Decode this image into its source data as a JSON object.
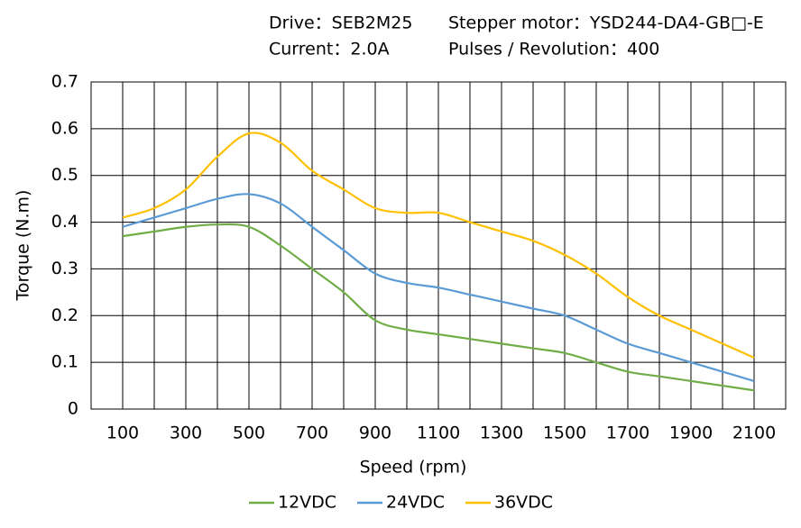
{
  "chart_data": {
    "type": "line",
    "annotations": [
      "Drive：SEB2M25",
      "Stepper motor：YSD244-DA4-GB□-E",
      "Current：2.0A",
      "Pulses / Revolution：400"
    ],
    "x_label": "Speed (rpm)",
    "y_label": "Torque (N.m)",
    "x": [
      100,
      200,
      300,
      400,
      500,
      600,
      700,
      800,
      900,
      1000,
      1100,
      1200,
      1300,
      1400,
      1500,
      1600,
      1700,
      1800,
      1900,
      2000,
      2100
    ],
    "series": [
      {
        "name": "12VDC",
        "color": "#70ad47",
        "values": [
          0.37,
          0.38,
          0.39,
          0.395,
          0.39,
          0.35,
          0.3,
          0.25,
          0.19,
          0.17,
          0.16,
          0.15,
          0.14,
          0.13,
          0.12,
          0.1,
          0.08,
          0.07,
          0.06,
          0.05,
          0.04
        ]
      },
      {
        "name": "24VDC",
        "color": "#5b9bd5",
        "values": [
          0.39,
          0.41,
          0.43,
          0.45,
          0.46,
          0.44,
          0.39,
          0.34,
          0.29,
          0.27,
          0.26,
          0.245,
          0.23,
          0.215,
          0.2,
          0.17,
          0.14,
          0.12,
          0.1,
          0.08,
          0.06
        ]
      },
      {
        "name": "36VDC",
        "color": "#ffc000",
        "values": [
          0.41,
          0.43,
          0.47,
          0.54,
          0.59,
          0.57,
          0.51,
          0.47,
          0.43,
          0.42,
          0.42,
          0.4,
          0.38,
          0.36,
          0.33,
          0.29,
          0.24,
          0.2,
          0.17,
          0.14,
          0.11
        ]
      }
    ],
    "xlim": [
      0,
      2200
    ],
    "xticks": [
      100,
      300,
      500,
      700,
      900,
      1100,
      1300,
      1500,
      1700,
      1900,
      2100
    ],
    "x_minor_grid": [
      200,
      400,
      600,
      800,
      1000,
      1200,
      1400,
      1600,
      1800,
      2000
    ],
    "ylim": [
      0,
      0.7
    ],
    "yticks": [
      0,
      0.1,
      0.2,
      0.3,
      0.4,
      0.5,
      0.6,
      0.7
    ],
    "grid": true,
    "legend": "bottom"
  }
}
